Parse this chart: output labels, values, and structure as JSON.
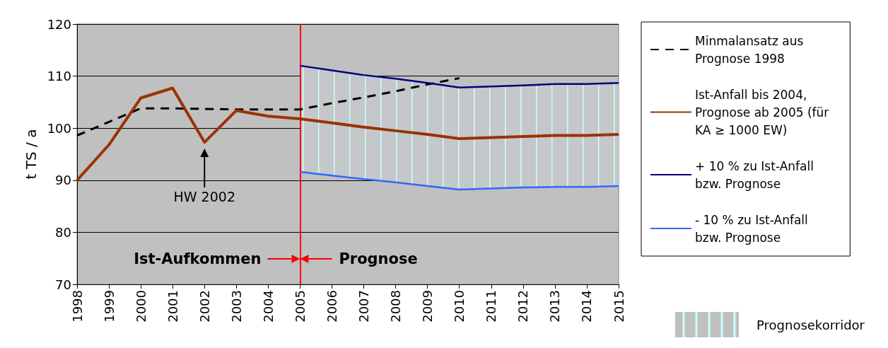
{
  "chart_data": {
    "type": "line",
    "ylabel": "t TS / a",
    "categories": [
      "1998",
      "1999",
      "2000",
      "2001",
      "2002",
      "2003",
      "2004",
      "2005",
      "2006",
      "2007",
      "2008",
      "2009",
      "2010",
      "2011",
      "2012",
      "2013",
      "2014",
      "2015"
    ],
    "series": [
      {
        "name": "Minmalansatz aus Prognose 1998",
        "color": "#000000",
        "line_style": "dashed",
        "values": [
          98.6,
          101.2,
          103.8,
          103.8,
          103.7,
          103.6,
          103.6,
          103.6,
          104.8,
          105.9,
          107.1,
          108.4,
          109.6,
          null,
          null,
          null,
          null,
          null
        ]
      },
      {
        "name": "Ist-Anfall bis 2004, Prognose ab 2005 (für KA ≥ 1000 EW)",
        "color": "#993300",
        "values": [
          90.0,
          96.8,
          105.8,
          107.7,
          97.3,
          103.4,
          102.3,
          101.8,
          101.0,
          100.2,
          99.5,
          98.8,
          98.0,
          98.2,
          98.4,
          98.6,
          98.6,
          98.8
        ]
      },
      {
        "name": "+ 10 % zu Ist-Anfall bzw. Prognose",
        "color": "#000080",
        "values": [
          null,
          null,
          null,
          null,
          null,
          null,
          null,
          112.0,
          111.1,
          110.2,
          109.5,
          108.7,
          107.8,
          108.0,
          108.2,
          108.5,
          108.5,
          108.7
        ]
      },
      {
        "name": "- 10 % zu Ist-Anfall bzw. Prognose",
        "color": "#3366ff",
        "values": [
          null,
          null,
          null,
          null,
          null,
          null,
          null,
          91.6,
          90.9,
          90.2,
          89.6,
          88.9,
          88.2,
          88.4,
          88.6,
          88.7,
          88.7,
          88.9
        ]
      },
      {
        "name": "Prognosekorridor",
        "type": "area",
        "color": "#ccffff",
        "values": [
          null,
          null,
          null,
          null,
          null,
          null,
          null,
          null,
          null,
          null,
          null,
          null,
          null,
          null,
          null,
          null,
          null,
          null
        ],
        "lower": [
          null,
          null,
          null,
          null,
          null,
          null,
          null,
          91.6,
          90.9,
          90.2,
          89.6,
          88.9,
          88.2,
          88.4,
          88.6,
          88.7,
          88.7,
          88.9
        ],
        "upper": [
          null,
          null,
          null,
          null,
          null,
          null,
          null,
          112.0,
          111.1,
          110.2,
          109.5,
          108.7,
          107.8,
          108.0,
          108.2,
          108.5,
          108.5,
          108.7
        ]
      }
    ],
    "ylim": [
      70,
      120
    ],
    "yticks": [
      70,
      80,
      90,
      100,
      110,
      120
    ],
    "grid": "y",
    "legend": "right",
    "marker": "none",
    "ref_lines": [
      {
        "axis": "x",
        "value": "2005",
        "color": "#ff0000"
      }
    ],
    "annotations": [
      "HW 2002",
      "Ist-Aufkommen",
      "Prognose"
    ]
  }
}
